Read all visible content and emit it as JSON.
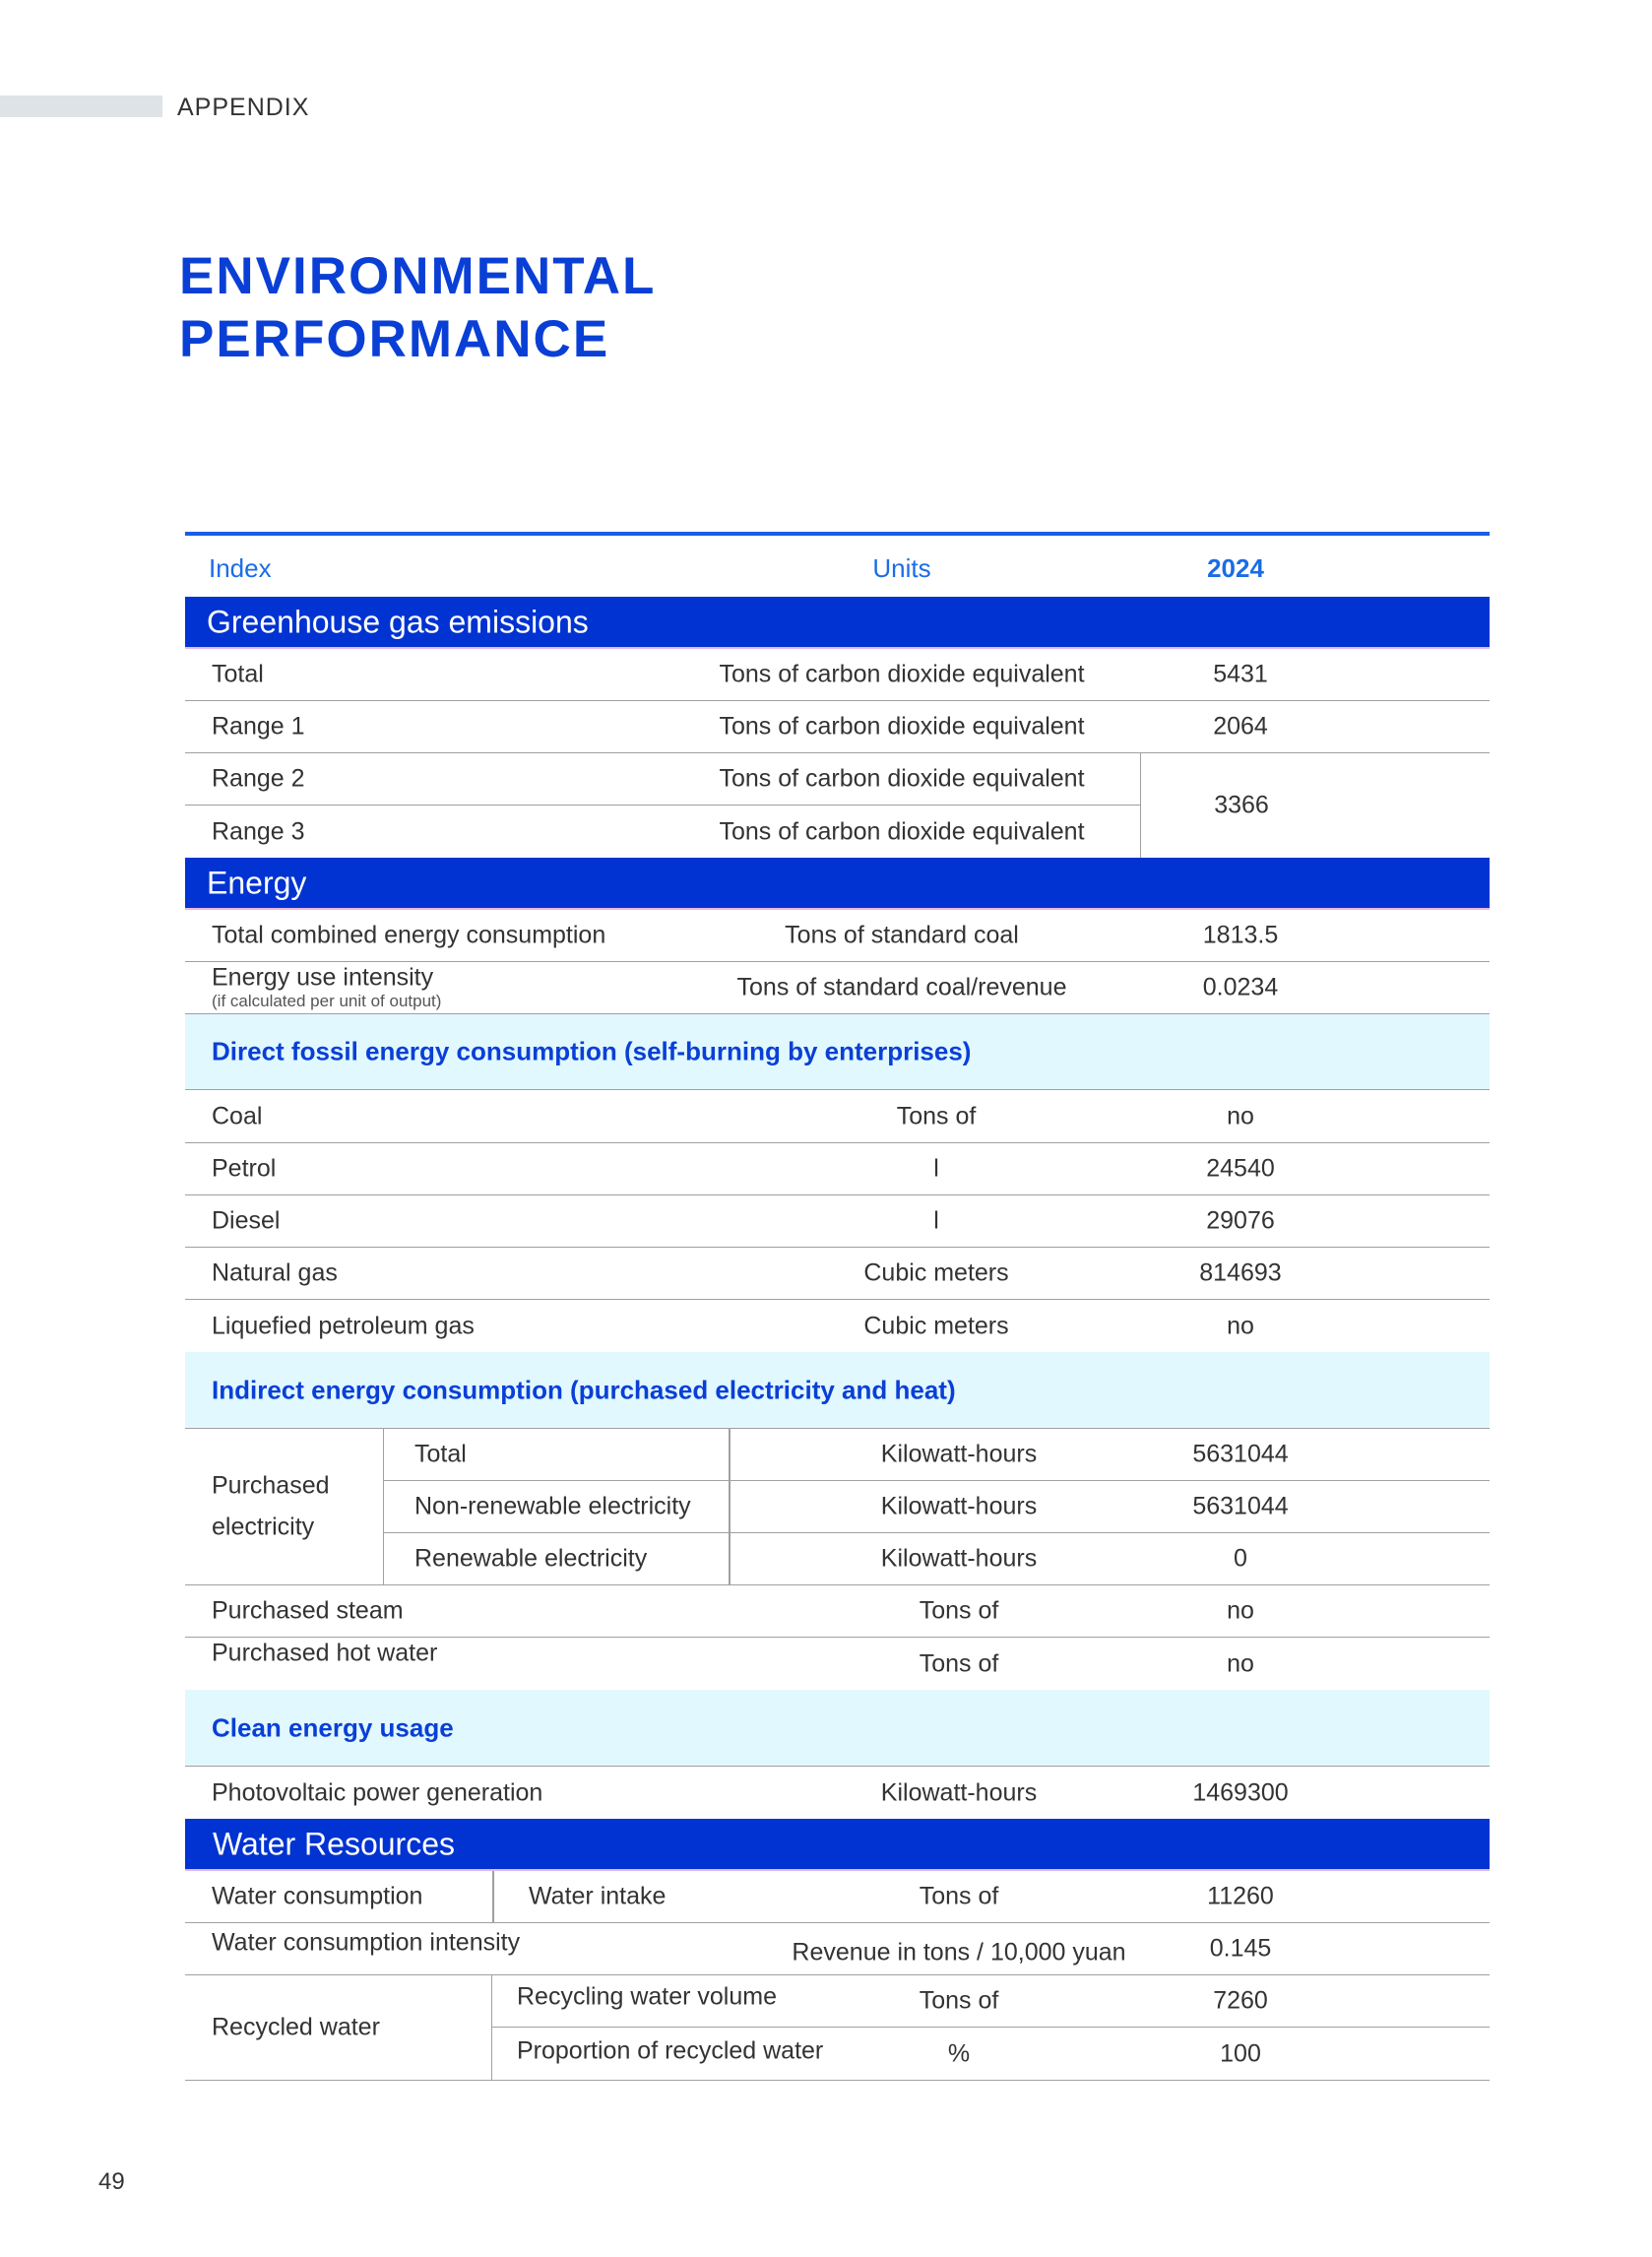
{
  "header": {
    "section": "APPENDIX",
    "title_line1": "ENVIRONMENTAL",
    "title_line2": "PERFORMANCE"
  },
  "columns": {
    "index": "Index",
    "units": "Units",
    "year": "2024"
  },
  "ghg": {
    "title": "Greenhouse gas emissions",
    "rows": [
      {
        "label": "Total",
        "unit": "Tons of carbon dioxide equivalent",
        "value": "5431"
      },
      {
        "label": "Range 1",
        "unit": "Tons of carbon dioxide equivalent",
        "value": "2064"
      },
      {
        "label": "Range 2",
        "unit": "Tons of carbon dioxide equivalent"
      },
      {
        "label": "Range 3",
        "unit": "Tons of carbon dioxide equivalent"
      }
    ],
    "range23_value": "3366"
  },
  "energy": {
    "title": "Energy",
    "rows": [
      {
        "label": "Total combined energy consumption",
        "unit": "Tons of standard coal",
        "value": "1813.5"
      },
      {
        "label": "Energy use intensity",
        "note": "(if calculated per unit of output)",
        "unit": "Tons of standard coal/revenue",
        "value": "0.0234"
      }
    ],
    "direct": {
      "title": "Direct fossil energy consumption (self-burning by enterprises)",
      "rows": [
        {
          "label": "Coal",
          "unit": "Tons of",
          "value": "no"
        },
        {
          "label": "Petrol",
          "unit": "l",
          "value": "24540"
        },
        {
          "label": "Diesel",
          "unit": "l",
          "value": "29076"
        },
        {
          "label": "Natural gas",
          "unit": "Cubic meters",
          "value": "814693"
        },
        {
          "label": "Liquefied petroleum gas",
          "unit": "Cubic meters",
          "value": "no"
        }
      ]
    },
    "indirect": {
      "title": "Indirect energy consumption (purchased electricity and heat)",
      "group_line1": "Purchased",
      "group_line2": "electricity",
      "rows": [
        {
          "label": "Total",
          "unit": "Kilowatt-hours",
          "value": "5631044"
        },
        {
          "label": "Non-renewable electricity",
          "unit": "Kilowatt-hours",
          "value": "5631044"
        },
        {
          "label": "Renewable electricity",
          "unit": "Kilowatt-hours",
          "value": "0"
        },
        {
          "label": "Purchased steam",
          "unit": "Tons of",
          "value": "no"
        },
        {
          "label": "Purchased hot water",
          "unit": "Tons of",
          "value": "no"
        }
      ]
    },
    "clean": {
      "title": "Clean energy usage",
      "rows": [
        {
          "label": "Photovoltaic power generation",
          "unit": "Kilowatt-hours",
          "value": "1469300"
        }
      ]
    }
  },
  "water": {
    "title": "Water Resources",
    "rows": [
      {
        "group": "Water consumption",
        "label": "Water intake",
        "unit": "Tons of",
        "value": "11260"
      },
      {
        "label": "Water consumption intensity",
        "unit": "Revenue in tons / 10,000 yuan",
        "value": "0.145"
      },
      {
        "group": "Recycled water",
        "label": "Recycling water volume",
        "unit": "Tons of",
        "value": "7260"
      },
      {
        "label": "Proportion of recycled water",
        "unit": "%",
        "value": "100"
      }
    ]
  },
  "page_number": "49",
  "colors": {
    "band": "#0033d1",
    "subband": "#e0f8fe",
    "accent": "#1a5fe0"
  }
}
